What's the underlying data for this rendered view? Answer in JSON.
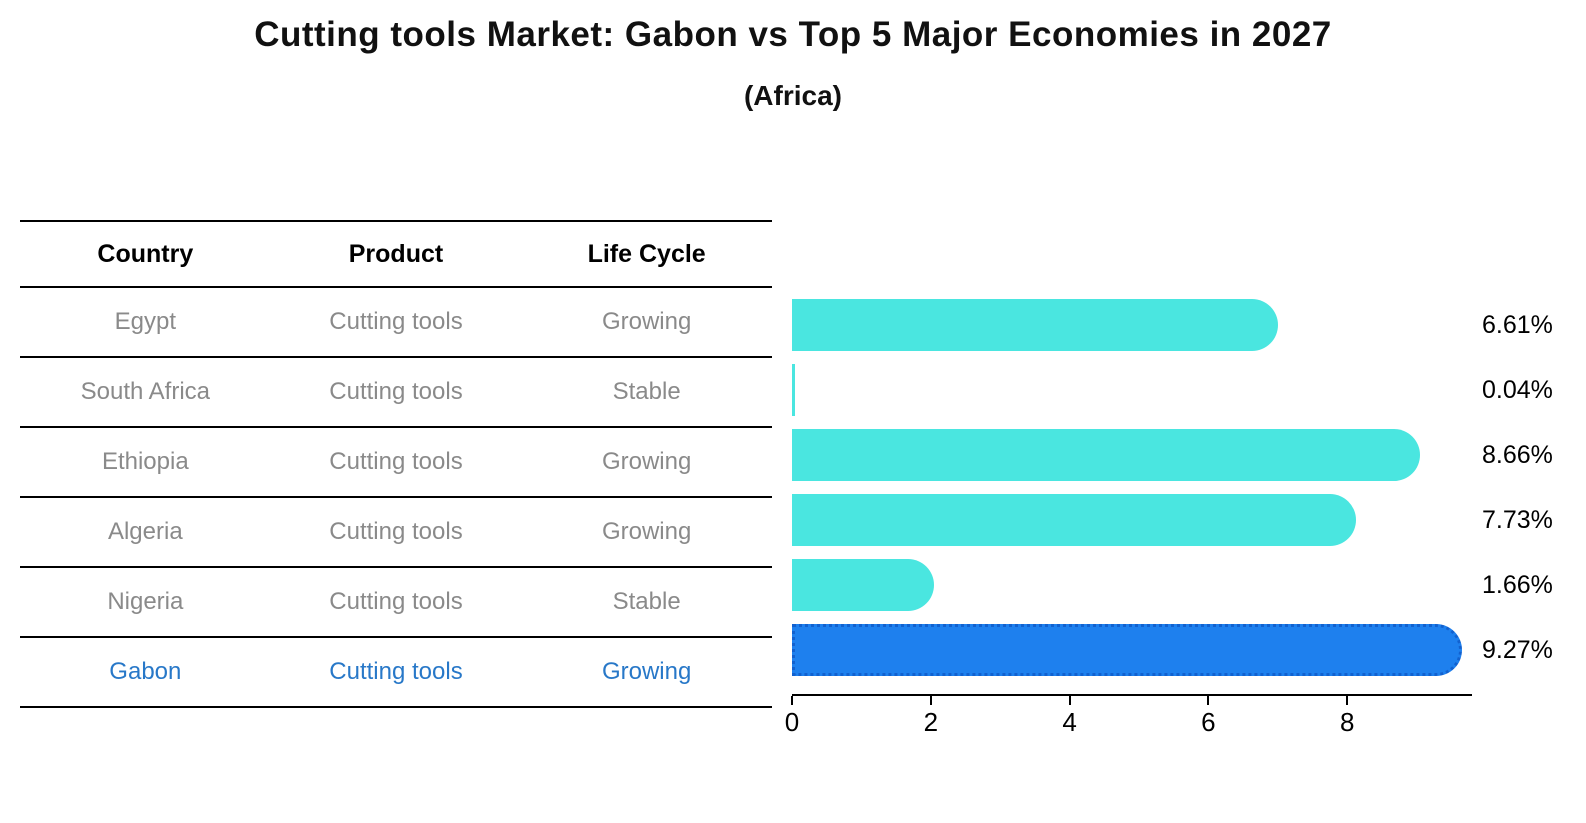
{
  "title": "Cutting tools Market: Gabon vs Top 5 Major Economies in 2027",
  "subtitle": "(Africa)",
  "table": {
    "headers": [
      "Country",
      "Product",
      "Life Cycle"
    ],
    "rows": [
      {
        "country": "Egypt",
        "product": "Cutting tools",
        "life_cycle": "Growing",
        "highlight": false
      },
      {
        "country": "South Africa",
        "product": "Cutting tools",
        "life_cycle": "Stable",
        "highlight": false
      },
      {
        "country": "Ethiopia",
        "product": "Cutting tools",
        "life_cycle": "Growing",
        "highlight": false
      },
      {
        "country": "Algeria",
        "product": "Cutting tools",
        "life_cycle": "Growing",
        "highlight": false
      },
      {
        "country": "Nigeria",
        "product": "Cutting tools",
        "life_cycle": "Stable",
        "highlight": false
      },
      {
        "country": "Gabon",
        "product": "Cutting tools",
        "life_cycle": "Growing",
        "highlight": true
      }
    ]
  },
  "chart_data": {
    "type": "bar",
    "orientation": "horizontal",
    "title": "Cutting tools Market: Gabon vs Top 5 Major Economies in 2027",
    "subtitle": "(Africa)",
    "categories": [
      "Egypt",
      "South Africa",
      "Ethiopia",
      "Algeria",
      "Nigeria",
      "Gabon"
    ],
    "values": [
      6.61,
      0.04,
      8.66,
      7.73,
      1.66,
      9.27
    ],
    "value_labels": [
      "6.61%",
      "0.04%",
      "8.66%",
      "7.73%",
      "1.66%",
      "9.27%"
    ],
    "xlabel": "",
    "ylabel": "",
    "xlim": [
      0,
      9.78
    ],
    "x_ticks": [
      0,
      2,
      4,
      6,
      8
    ],
    "grid": false,
    "legend_position": "none",
    "bar_color": "#4ae6e0",
    "highlight_color": "#1e80ee",
    "highlight_index": 5
  },
  "colors": {
    "highlight_text": "#2878c8",
    "body_text": "#8a8a8a",
    "header_text": "#000000",
    "axis": "#000000"
  }
}
